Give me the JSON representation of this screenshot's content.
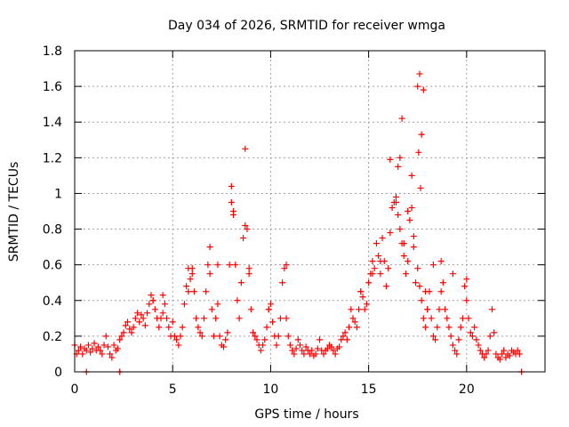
{
  "chart_data": {
    "type": "scatter",
    "title": "Day 034 of 2026, SRMTID for receiver wmga",
    "xlabel": "GPS time / hours",
    "ylabel": "SRMTID / TECUs",
    "xlim": [
      0,
      24
    ],
    "ylim": [
      0,
      1.8
    ],
    "x_ticks": [
      "0",
      "5",
      "10",
      "15",
      "20"
    ],
    "x_tick_values": [
      0,
      5,
      10,
      15,
      20
    ],
    "y_ticks": [
      "0",
      "0.2",
      "0.4",
      "0.6",
      "0.8",
      "1",
      "1.2",
      "1.4",
      "1.6",
      "1.8"
    ],
    "y_tick_values": [
      0,
      0.2,
      0.4,
      0.6,
      0.8,
      1.0,
      1.2,
      1.4,
      1.6,
      1.8
    ],
    "grid": true,
    "marker": "+",
    "color": "#ff0000",
    "series": [
      {
        "name": "SRMTID",
        "x": [
          0.0,
          0.1,
          0.2,
          0.3,
          0.4,
          0.5,
          0.6,
          0.7,
          0.8,
          0.9,
          1.0,
          1.1,
          1.2,
          1.3,
          1.4,
          1.5,
          1.6,
          1.7,
          1.8,
          1.9,
          2.0,
          2.1,
          2.2,
          2.3,
          2.4,
          2.5,
          2.6,
          2.7,
          2.8,
          2.9,
          3.0,
          3.1,
          3.2,
          3.3,
          3.4,
          3.5,
          3.6,
          3.7,
          3.8,
          3.9,
          4.0,
          4.1,
          4.2,
          4.3,
          4.4,
          4.5,
          4.6,
          4.7,
          4.8,
          4.9,
          5.0,
          5.1,
          5.2,
          5.3,
          5.4,
          5.5,
          5.6,
          5.7,
          5.8,
          5.9,
          6.0,
          6.1,
          6.2,
          6.3,
          6.4,
          6.5,
          6.6,
          6.7,
          6.8,
          6.9,
          7.0,
          7.1,
          7.2,
          7.3,
          7.4,
          7.5,
          7.6,
          7.7,
          7.8,
          7.9,
          8.0,
          8.1,
          8.2,
          8.3,
          8.4,
          8.5,
          8.6,
          8.7,
          8.8,
          8.9,
          9.0,
          9.1,
          9.2,
          9.3,
          9.4,
          9.5,
          9.6,
          9.7,
          9.8,
          9.9,
          10.0,
          10.1,
          10.2,
          10.3,
          10.4,
          10.5,
          10.6,
          10.7,
          10.8,
          10.9,
          11.0,
          11.1,
          11.2,
          11.3,
          11.4,
          11.5,
          11.6,
          11.7,
          11.8,
          11.9,
          12.0,
          12.1,
          12.2,
          12.3,
          12.4,
          12.5,
          12.6,
          12.7,
          12.8,
          12.9,
          13.0,
          13.1,
          13.2,
          13.3,
          13.4,
          13.5,
          13.6,
          13.7,
          13.8,
          13.9,
          14.0,
          14.1,
          14.2,
          14.3,
          14.4,
          14.5,
          14.6,
          14.7,
          14.8,
          14.9,
          15.0,
          15.1,
          15.2,
          15.3,
          15.4,
          15.5,
          15.6,
          15.7,
          15.8,
          15.9,
          16.0,
          16.1,
          16.2,
          16.3,
          16.4,
          16.5,
          16.6,
          16.7,
          16.8,
          16.9,
          17.0,
          17.1,
          17.2,
          17.3,
          17.4,
          17.5,
          17.6,
          17.7,
          17.8,
          17.9,
          18.0,
          18.1,
          18.2,
          18.3,
          18.4,
          18.5,
          18.6,
          18.7,
          18.8,
          18.9,
          19.0,
          19.1,
          19.2,
          19.3,
          19.4,
          19.5,
          19.6,
          19.7,
          19.8,
          19.9,
          20.0,
          20.1,
          20.2,
          20.3,
          20.4,
          20.5,
          20.6,
          20.7,
          20.8,
          20.9,
          21.0,
          21.1,
          21.2,
          21.3,
          21.4,
          21.5,
          21.6,
          21.7,
          21.8,
          21.9,
          22.0,
          22.1,
          22.2,
          22.3,
          22.4,
          22.5,
          22.6,
          22.7,
          22.8,
          0.6,
          2.3,
          16.1,
          8.0,
          8.1,
          8.7,
          16.6,
          16.7,
          17.5,
          17.6,
          17.7,
          17.8,
          17.55,
          17.65,
          16.5,
          16.8,
          16.4,
          17.0,
          17.3,
          18.3,
          18.0,
          19.3,
          18.7,
          20.0,
          4.0,
          4.5,
          5.8,
          6.0,
          6.9,
          7.3,
          8.9,
          10.8,
          9.9,
          14.6,
          15.2,
          15.6,
          17.2,
          17.9
        ],
        "y": [
          0.15,
          0.1,
          0.12,
          0.14,
          0.1,
          0.13,
          0.12,
          0.15,
          0.11,
          0.13,
          0.16,
          0.12,
          0.14,
          0.12,
          0.1,
          0.15,
          0.2,
          0.14,
          0.1,
          0.08,
          0.15,
          0.12,
          0.13,
          0.18,
          0.2,
          0.22,
          0.26,
          0.28,
          0.24,
          0.22,
          0.25,
          0.3,
          0.33,
          0.28,
          0.32,
          0.3,
          0.26,
          0.33,
          0.38,
          0.43,
          0.4,
          0.35,
          0.3,
          0.25,
          0.3,
          0.33,
          0.38,
          0.3,
          0.25,
          0.2,
          0.28,
          0.2,
          0.18,
          0.15,
          0.2,
          0.25,
          0.38,
          0.48,
          0.45,
          0.52,
          0.55,
          0.45,
          0.3,
          0.25,
          0.22,
          0.2,
          0.3,
          0.45,
          0.6,
          0.55,
          0.35,
          0.2,
          0.3,
          0.38,
          0.2,
          0.15,
          0.14,
          0.18,
          0.22,
          0.6,
          0.95,
          0.9,
          0.6,
          0.4,
          0.3,
          0.5,
          0.75,
          0.82,
          0.8,
          0.55,
          0.35,
          0.22,
          0.2,
          0.18,
          0.15,
          0.12,
          0.15,
          0.18,
          0.25,
          0.35,
          0.38,
          0.28,
          0.2,
          0.15,
          0.2,
          0.3,
          0.5,
          0.58,
          0.3,
          0.2,
          0.15,
          0.12,
          0.1,
          0.13,
          0.18,
          0.15,
          0.12,
          0.1,
          0.14,
          0.12,
          0.1,
          0.12,
          0.09,
          0.1,
          0.13,
          0.18,
          0.12,
          0.1,
          0.12,
          0.13,
          0.15,
          0.14,
          0.12,
          0.1,
          0.13,
          0.14,
          0.18,
          0.2,
          0.22,
          0.18,
          0.25,
          0.35,
          0.3,
          0.28,
          0.25,
          0.35,
          0.45,
          0.42,
          0.35,
          0.38,
          0.5,
          0.55,
          0.62,
          0.58,
          0.72,
          0.65,
          0.55,
          0.75,
          0.62,
          0.48,
          0.58,
          0.78,
          0.92,
          0.95,
          0.98,
          0.88,
          0.8,
          0.72,
          0.65,
          0.55,
          0.62,
          0.85,
          0.92,
          0.7,
          0.5,
          0.58,
          0.48,
          0.4,
          0.3,
          0.25,
          0.35,
          0.45,
          0.3,
          0.2,
          0.18,
          0.25,
          0.35,
          0.45,
          0.5,
          0.35,
          0.3,
          0.25,
          0.2,
          0.15,
          0.12,
          0.1,
          0.18,
          0.25,
          0.3,
          0.48,
          0.4,
          0.3,
          0.22,
          0.2,
          0.25,
          0.18,
          0.15,
          0.12,
          0.1,
          0.08,
          0.1,
          0.12,
          0.2,
          0.35,
          0.22,
          0.1,
          0.08,
          0.07,
          0.1,
          0.12,
          0.08,
          0.1,
          0.09,
          0.12,
          0.11,
          0.1,
          0.12,
          0.1,
          0.0,
          0.0,
          0.0,
          1.19,
          1.04,
          0.88,
          1.25,
          1.2,
          1.42,
          1.6,
          1.67,
          1.33,
          1.58,
          1.23,
          1.03,
          1.15,
          0.72,
          0.95,
          0.9,
          0.76,
          0.6,
          0.35,
          0.55,
          0.62,
          0.52,
          0.4,
          0.43,
          0.58,
          0.58,
          0.7,
          0.6,
          0.58,
          0.6,
          0.35,
          0.45,
          0.55,
          0.62,
          1.1,
          0.45
        ]
      }
    ]
  }
}
